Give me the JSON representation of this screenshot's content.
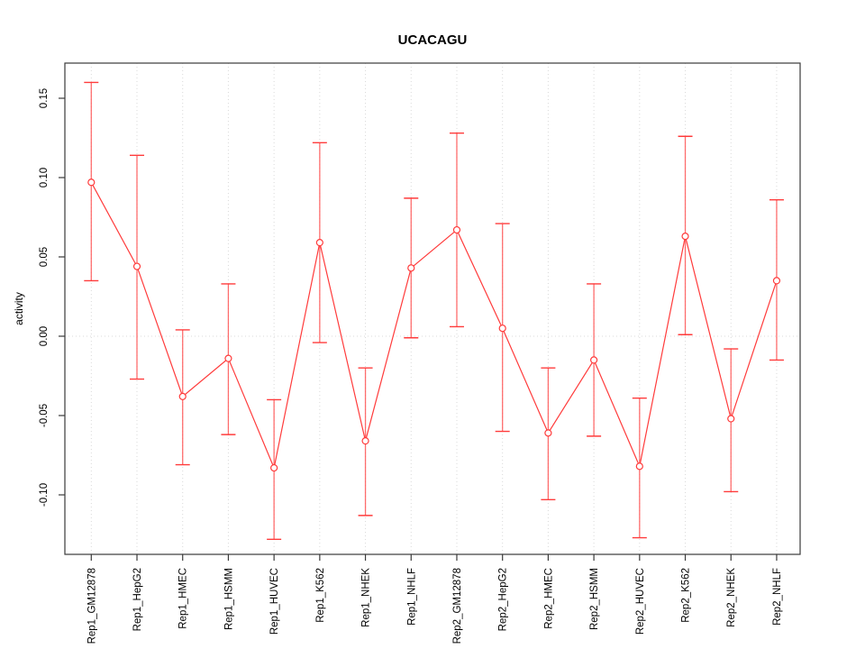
{
  "chart_data": {
    "type": "line",
    "title": "UCACAGU",
    "xlabel": "",
    "ylabel": "activity",
    "legend_position": "none",
    "ylim": [
      -0.1375,
      0.172
    ],
    "yticks": [
      0.15,
      0.1,
      0.05,
      0.0,
      -0.05,
      -0.1
    ],
    "ytick_labels": [
      "0.15",
      "0.10",
      "0.05",
      "0.00",
      "-0.05",
      "-0.10"
    ],
    "grid": {
      "vertical_dotted_per_category": true,
      "horizontal_dotted_zero_line": true
    },
    "categories": [
      "Rep1_GM12878",
      "Rep1_HepG2",
      "Rep1_HMEC",
      "Rep1_HSMM",
      "Rep1_HUVEC",
      "Rep1_K562",
      "Rep1_NHEK",
      "Rep1_NHLF",
      "Rep2_GM12878",
      "Rep2_HepG2",
      "Rep2_HMEC",
      "Rep2_HSMM",
      "Rep2_HUVEC",
      "Rep2_K562",
      "Rep2_NHEK",
      "Rep2_NHLF"
    ],
    "series": [
      {
        "name": "activity",
        "marker": "open-circle",
        "line_style": "solid",
        "color": "#ff3b3b",
        "values": [
          0.097,
          0.044,
          -0.038,
          -0.014,
          -0.083,
          0.059,
          -0.066,
          0.043,
          0.067,
          0.005,
          -0.061,
          -0.015,
          -0.082,
          0.063,
          -0.052,
          0.035
        ],
        "ci_low": [
          0.035,
          -0.027,
          -0.081,
          -0.062,
          -0.128,
          -0.004,
          -0.113,
          -0.001,
          0.006,
          -0.06,
          -0.103,
          -0.063,
          -0.127,
          0.001,
          -0.098,
          -0.015
        ],
        "ci_high": [
          0.16,
          0.114,
          0.004,
          0.033,
          -0.04,
          0.122,
          -0.02,
          0.087,
          0.128,
          0.071,
          -0.02,
          0.033,
          -0.039,
          0.126,
          -0.008,
          0.086
        ]
      }
    ]
  },
  "colors": {
    "series": "#ff3b3b",
    "error_bar": "#ff5555",
    "grid": "#d9d9d9",
    "axis": "#3a3a3a",
    "background": "#ffffff",
    "text": "#000000"
  }
}
